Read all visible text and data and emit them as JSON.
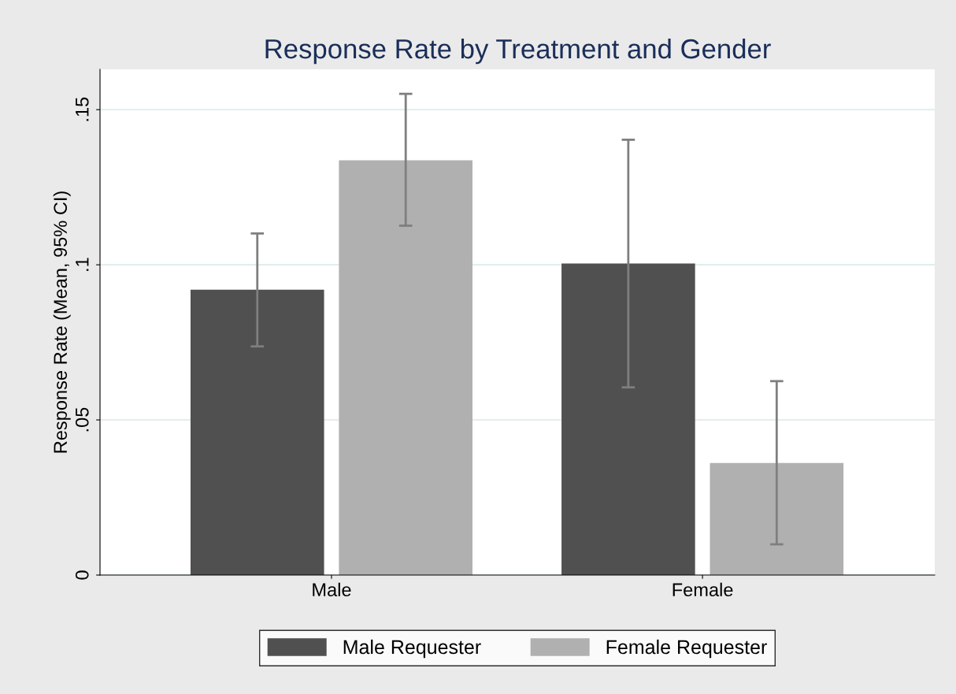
{
  "chart_data": {
    "type": "bar",
    "title": "Response Rate by Treatment and Gender",
    "ylabel": "Response Rate (Mean, 95% CI)",
    "categories": [
      "Male",
      "Female"
    ],
    "series": [
      {
        "name": "Male Requester",
        "color": "#505050",
        "values": [
          0.092,
          0.1004
        ],
        "errors": [
          [
            0.0737,
            0.1101
          ],
          [
            0.0605,
            0.1403
          ]
        ]
      },
      {
        "name": "Female Requester",
        "color": "#b0b0b0",
        "values": [
          0.1337,
          0.0361
        ],
        "errors": [
          [
            0.1126,
            0.1551
          ],
          [
            0.0099,
            0.0625
          ]
        ]
      }
    ],
    "ylim": [
      0,
      0.163
    ],
    "yticks": [
      {
        "value": 0,
        "label": "0"
      },
      {
        "value": 0.05,
        "label": ".05"
      },
      {
        "value": 0.1,
        "label": ".1"
      },
      {
        "value": 0.15,
        "label": ".15"
      }
    ],
    "grid": "y",
    "legend": "bottom"
  }
}
